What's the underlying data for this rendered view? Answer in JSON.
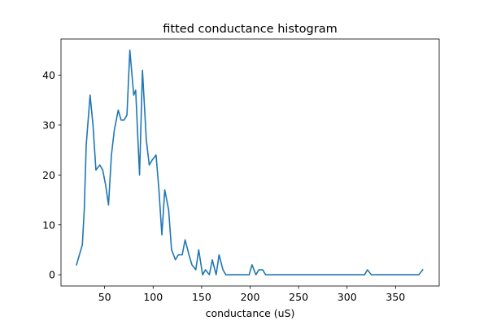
{
  "chart_data": {
    "type": "line",
    "title": "fitted conductance histogram",
    "xlabel": "conductance (uS)",
    "ylabel": "",
    "xlim": [
      5,
      395
    ],
    "ylim": [
      -2.25,
      47.25
    ],
    "xticks": [
      50,
      100,
      150,
      200,
      250,
      300,
      350
    ],
    "yticks": [
      0,
      10,
      20,
      30,
      40
    ],
    "grid": false,
    "legend": "none",
    "series": [
      {
        "color": "#1f77b4",
        "x": [
          21,
          27,
          29,
          31,
          35,
          38,
          41,
          45,
          48,
          51,
          54,
          57,
          60,
          64,
          67,
          70,
          73,
          76,
          80,
          82,
          86,
          89,
          93,
          96,
          99,
          103,
          106,
          109,
          112,
          116,
          119,
          123,
          126,
          130,
          133,
          137,
          140,
          144,
          147,
          151,
          154,
          158,
          161,
          165,
          168,
          172,
          175,
          179,
          182,
          185,
          189,
          192,
          195,
          199,
          202,
          206,
          209,
          213,
          216,
          220,
          223,
          227,
          230,
          234,
          237,
          241,
          244,
          248,
          251,
          255,
          258,
          262,
          265,
          269,
          272,
          276,
          279,
          283,
          286,
          290,
          293,
          297,
          300,
          304,
          307,
          311,
          314,
          318,
          321,
          325,
          328,
          332,
          335,
          339,
          342,
          346,
          349,
          353,
          356,
          360,
          363,
          367,
          370,
          374,
          378
        ],
        "y": [
          2,
          6,
          13,
          26,
          36,
          30,
          21,
          22,
          21,
          18,
          14,
          24,
          29,
          33,
          31,
          31,
          32,
          45,
          36,
          37,
          20,
          41,
          27,
          22,
          23,
          24,
          17,
          8,
          17,
          13,
          5,
          3,
          4,
          4,
          7,
          4,
          2,
          1,
          5,
          0,
          1,
          0,
          3,
          0,
          4,
          1,
          0,
          0,
          0,
          0,
          0,
          0,
          0,
          0,
          2,
          0,
          1,
          1,
          0,
          0,
          0,
          0,
          0,
          0,
          0,
          0,
          0,
          0,
          0,
          0,
          0,
          0,
          0,
          0,
          0,
          0,
          0,
          0,
          0,
          0,
          0,
          0,
          0,
          0,
          0,
          0,
          0,
          0,
          1,
          0,
          0,
          0,
          0,
          0,
          0,
          0,
          0,
          0,
          0,
          0,
          0,
          0,
          0,
          0,
          1
        ]
      }
    ]
  }
}
